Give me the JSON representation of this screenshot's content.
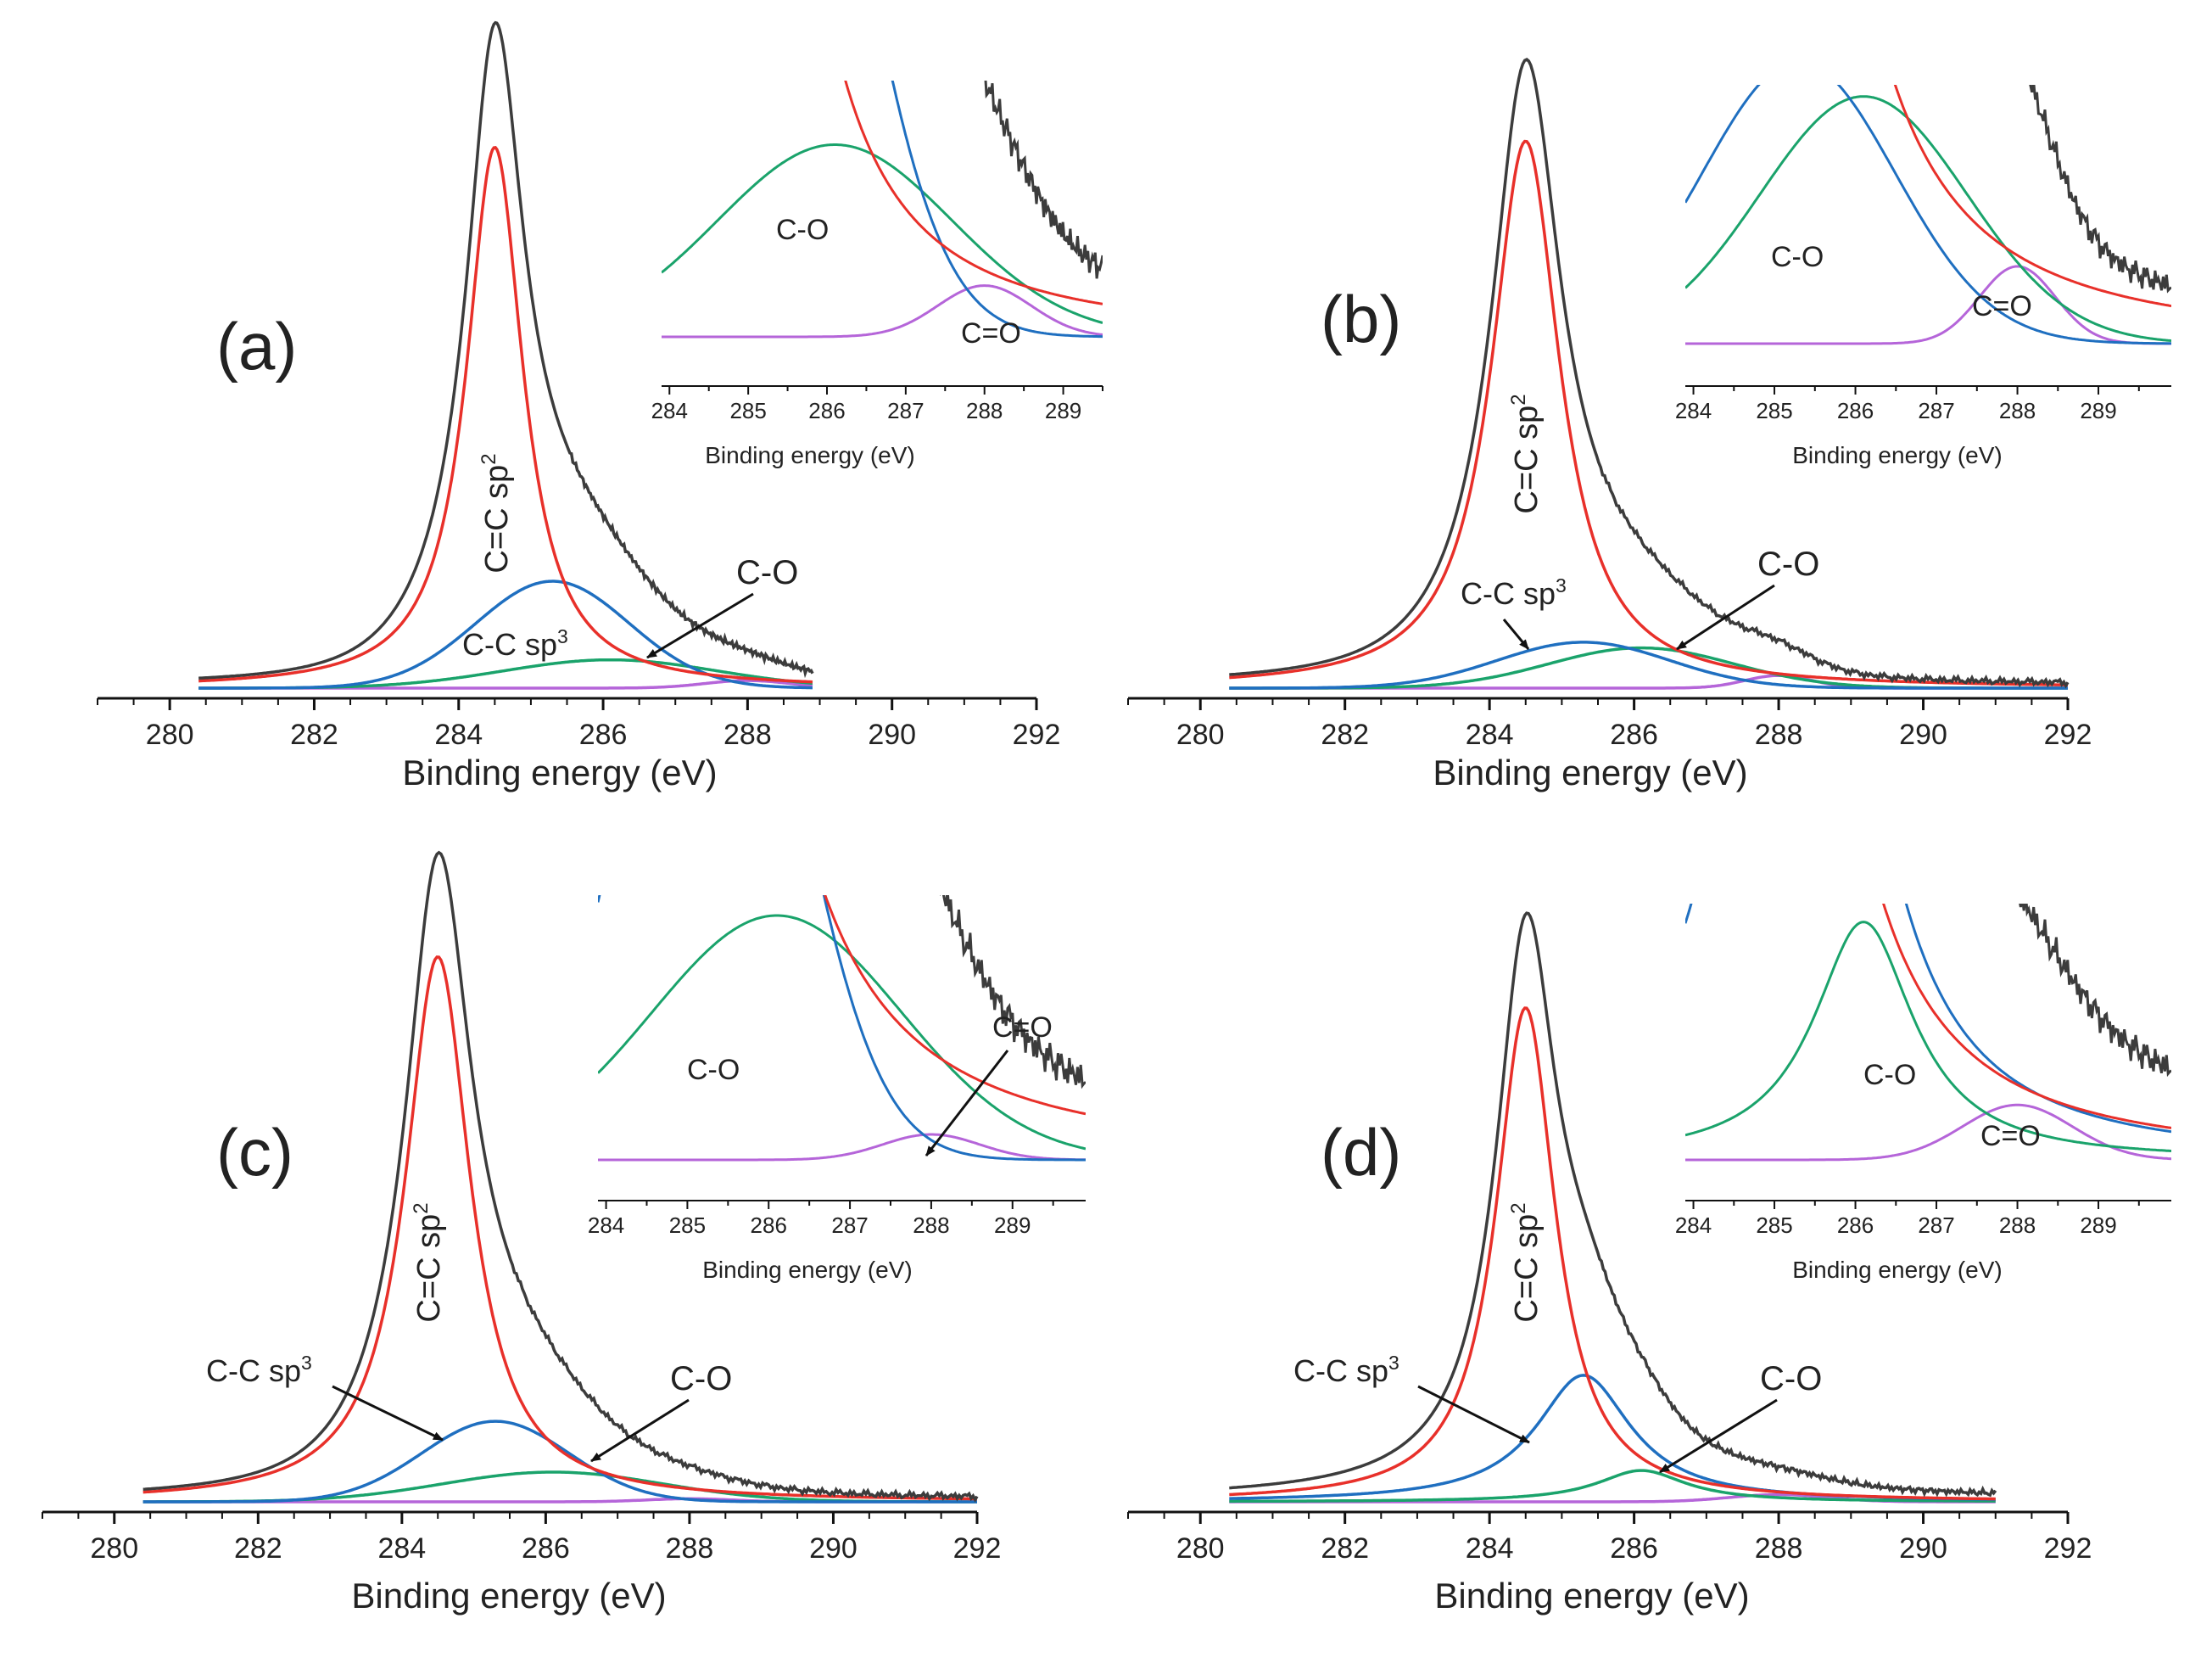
{
  "colors": {
    "envelope": "#3c3c3c",
    "sp2": "#e8302a",
    "sp3": "#1f6fc0",
    "co": "#1aa36b",
    "c_double_o": "#b565d9",
    "axis": "#111111"
  },
  "chart_data": [
    {
      "type": "line",
      "panel_label": "(a)",
      "xlabel": "Binding energy (eV)",
      "xlim": [
        279,
        292
      ],
      "xticks": [
        280,
        282,
        284,
        286,
        288,
        290,
        292
      ],
      "series": [
        {
          "name": "C=C sp2",
          "center": 284.5,
          "height": 0.86,
          "fwhm": 0.95,
          "shape": "lorentz"
        },
        {
          "name": "C-C sp3",
          "center": 285.3,
          "height": 0.17,
          "fwhm": 2.5,
          "shape": "gauss"
        },
        {
          "name": "C-O",
          "center": 286.1,
          "height": 0.045,
          "fwhm": 3.5,
          "shape": "gauss"
        },
        {
          "name": "C=O",
          "center": 288.0,
          "height": 0.012,
          "fwhm": 1.4,
          "shape": "gauss"
        }
      ],
      "annotations": {
        "sp2": "C=C sp",
        "sp2_sup": "2",
        "sp3": "C-C sp",
        "sp3_sup": "3",
        "co": "C-O"
      },
      "inset": {
        "xlabel": "Binding energy (eV)",
        "xlim": [
          283.9,
          289.5
        ],
        "xticks": [
          284,
          285,
          286,
          287,
          288,
          289
        ],
        "annotations": {
          "co": "C-O",
          "c_double_o": "C=O"
        }
      }
    },
    {
      "type": "line",
      "panel_label": "(b)",
      "xlabel": "Binding energy (eV)",
      "xlim": [
        279,
        292
      ],
      "xticks": [
        280,
        282,
        284,
        286,
        288,
        290,
        292
      ],
      "series": [
        {
          "name": "C=C sp2",
          "center": 284.5,
          "height": 0.87,
          "fwhm": 1.15,
          "shape": "lorentz"
        },
        {
          "name": "C-C sp3",
          "center": 285.3,
          "height": 0.073,
          "fwhm": 2.8,
          "shape": "gauss"
        },
        {
          "name": "C-O",
          "center": 286.1,
          "height": 0.064,
          "fwhm": 3.0,
          "shape": "gauss"
        },
        {
          "name": "C=O",
          "center": 288.0,
          "height": 0.02,
          "fwhm": 1.1,
          "shape": "gauss"
        }
      ],
      "annotations": {
        "sp2": "C=C sp",
        "sp2_sup": "2",
        "sp3": "C-C sp",
        "sp3_sup": "3",
        "co": "C-O"
      },
      "inset": {
        "xlabel": "Binding energy (eV)",
        "xlim": [
          283.9,
          289.9
        ],
        "xticks": [
          284,
          285,
          286,
          287,
          288,
          289
        ],
        "annotations": {
          "co": "C-O",
          "c_double_o": "C=O"
        }
      }
    },
    {
      "type": "line",
      "panel_label": "(c)",
      "xlabel": "Binding energy (eV)",
      "xlim": [
        279,
        292
      ],
      "xticks": [
        280,
        282,
        284,
        286,
        288,
        290,
        292
      ],
      "series": [
        {
          "name": "C=C sp2",
          "center": 284.5,
          "height": 0.88,
          "fwhm": 1.1,
          "shape": "lorentz"
        },
        {
          "name": "C-C sp3",
          "center": 285.3,
          "height": 0.13,
          "fwhm": 2.4,
          "shape": "gauss"
        },
        {
          "name": "C-O",
          "center": 286.1,
          "height": 0.048,
          "fwhm": 3.6,
          "shape": "gauss"
        },
        {
          "name": "C=O",
          "center": 288.0,
          "height": 0.005,
          "fwhm": 1.4,
          "shape": "gauss"
        }
      ],
      "annotations": {
        "sp2": "C=C sp",
        "sp2_sup": "2",
        "sp3": "C-C sp",
        "sp3_sup": "3",
        "co": "C-O"
      },
      "inset": {
        "xlabel": "Binding energy (eV)",
        "xlim": [
          283.9,
          289.9
        ],
        "xticks": [
          284,
          285,
          286,
          287,
          288,
          289
        ],
        "annotations": {
          "co": "C-O",
          "c_double_o": "C=O"
        }
      }
    },
    {
      "type": "line",
      "panel_label": "(d)",
      "xlabel": "Binding energy (eV)",
      "xlim": [
        279,
        292
      ],
      "xticks": [
        280,
        282,
        284,
        286,
        288,
        290,
        292
      ],
      "series": [
        {
          "name": "C=C sp2",
          "center": 284.5,
          "height": 0.82,
          "fwhm": 1.0,
          "shape": "lorentz"
        },
        {
          "name": "C-C sp3",
          "center": 285.3,
          "height": 0.21,
          "fwhm": 1.6,
          "shape": "lorentz"
        },
        {
          "name": "C-O",
          "center": 286.1,
          "height": 0.052,
          "fwhm": 1.5,
          "shape": "lorentz"
        },
        {
          "name": "C=O",
          "center": 288.0,
          "height": 0.012,
          "fwhm": 1.6,
          "shape": "gauss"
        }
      ],
      "annotations": {
        "sp2": "C=C sp",
        "sp2_sup": "2",
        "sp3": "C-C sp",
        "sp3_sup": "3",
        "co": "C-O"
      },
      "inset": {
        "xlabel": "Binding energy (eV)",
        "xlim": [
          283.9,
          289.9
        ],
        "xticks": [
          284,
          285,
          286,
          287,
          288,
          289
        ],
        "annotations": {
          "co": "C-O",
          "c_double_o": "C=O"
        }
      }
    }
  ]
}
